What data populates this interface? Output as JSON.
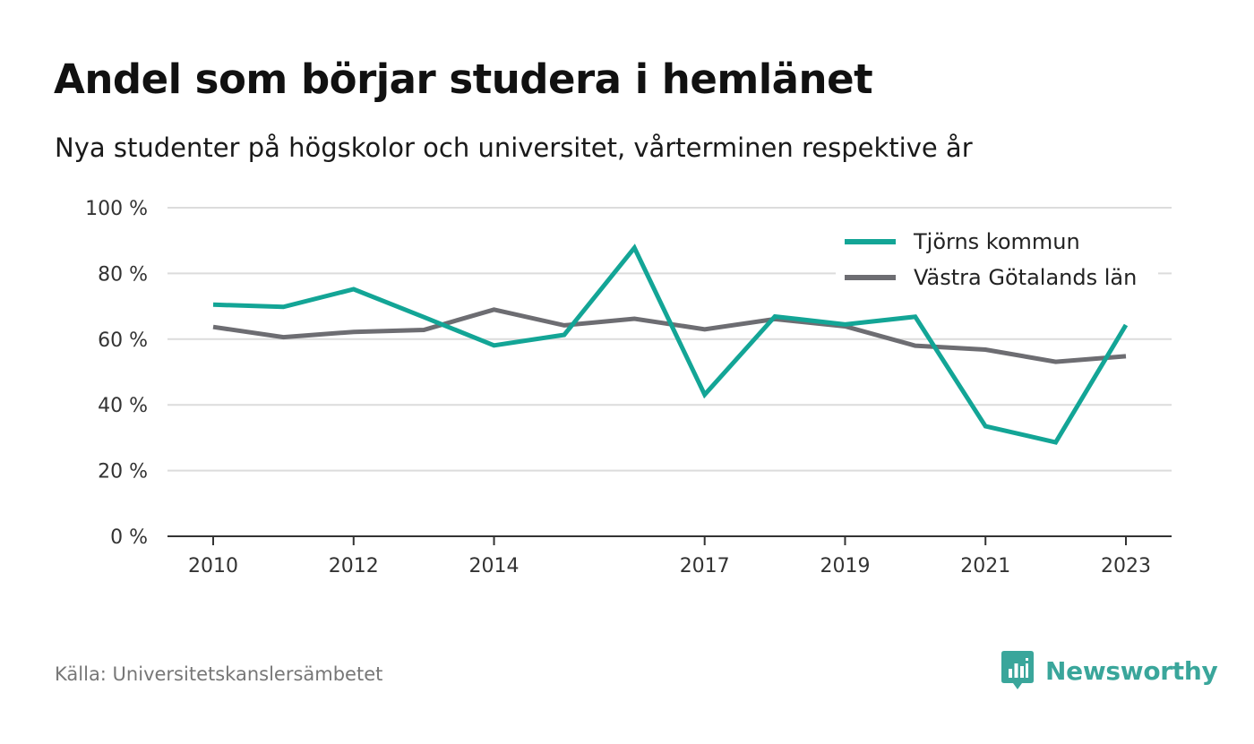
{
  "header": {
    "title": "Andel som börjar studera i hemlänet",
    "subtitle": "Nya studenter på högskolor och universitet, vårterminen respektive år"
  },
  "footer": {
    "source": "Källa: Universitetskanslersämbetet",
    "brand": "Newsworthy",
    "brand_icon": "bar-chart-speech-icon",
    "brand_color": "#3aa69b"
  },
  "chart_data": {
    "type": "line",
    "title": "Andel som börjar studera i hemlänet",
    "subtitle": "Nya studenter på högskolor och universitet, vårterminen respektive år",
    "xlabel": "",
    "ylabel": "",
    "x": [
      2010,
      2011,
      2012,
      2013,
      2014,
      2015,
      2016,
      2017,
      2018,
      2019,
      2020,
      2021,
      2022,
      2023
    ],
    "xticks": [
      2010,
      2012,
      2014,
      2017,
      2019,
      2021,
      2023
    ],
    "xtick_labels": [
      "2010",
      "2012",
      "2014",
      "2017",
      "2019",
      "2021",
      "2023"
    ],
    "ylim": [
      0,
      100
    ],
    "yticks": [
      0,
      20,
      40,
      60,
      80,
      100
    ],
    "ytick_labels": [
      "0 %",
      "20 %",
      "40 %",
      "60 %",
      "80 %",
      "100 %"
    ],
    "grid": true,
    "legend_position": "top-right",
    "series": [
      {
        "name": "Tjörns kommun",
        "color": "#13a596",
        "values": [
          70.5,
          69.8,
          75.2,
          66.7,
          58.1,
          61.3,
          87.8,
          43.1,
          66.9,
          64.5,
          66.8,
          33.5,
          28.6,
          64.3
        ]
      },
      {
        "name": "Västra Götalands län",
        "color": "#6d6d72",
        "values": [
          63.7,
          60.6,
          62.2,
          62.8,
          69.0,
          64.2,
          66.2,
          63.0,
          66.1,
          63.9,
          58.0,
          56.8,
          53.1,
          54.8
        ]
      }
    ]
  }
}
